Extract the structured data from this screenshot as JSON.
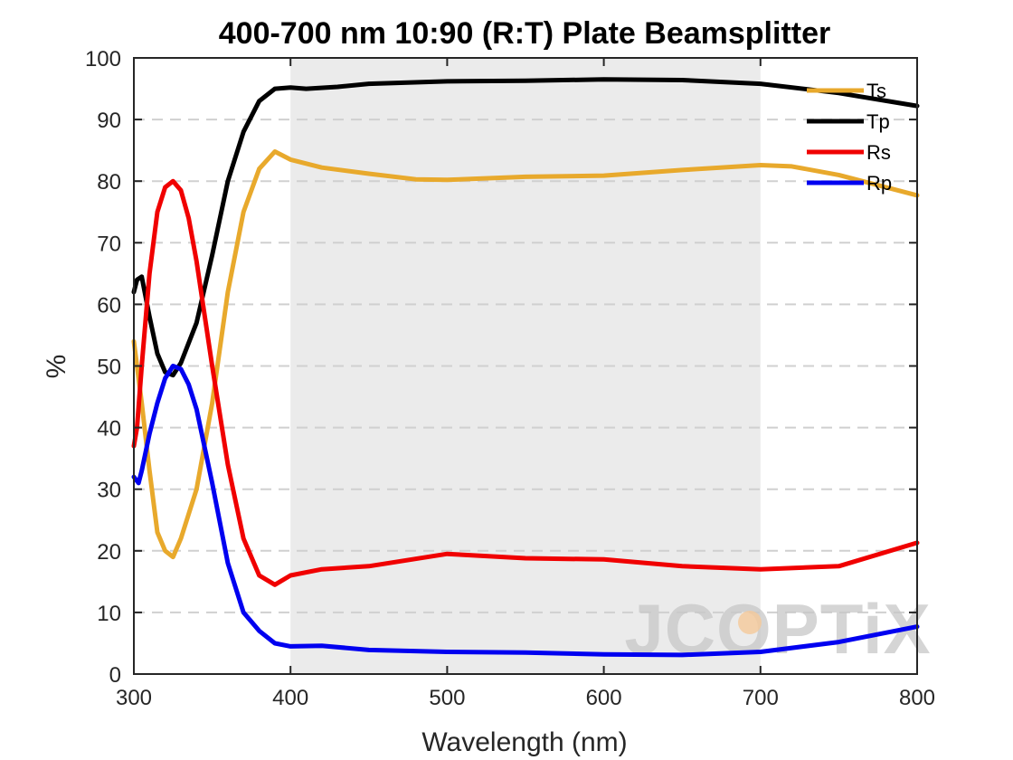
{
  "chart_data": {
    "type": "line",
    "title": "400-700 nm 10:90 (R:T) Plate Beamsplitter",
    "xlabel": "Wavelength (nm)",
    "ylabel": "%",
    "xlim": [
      300,
      800
    ],
    "ylim": [
      0,
      100
    ],
    "xticks": [
      300,
      400,
      500,
      600,
      700,
      800
    ],
    "yticks": [
      0,
      10,
      20,
      30,
      40,
      50,
      60,
      70,
      80,
      90,
      100
    ],
    "grid": "horizontal dashed",
    "shaded_band": [
      400,
      700
    ],
    "legend_position": "top-right",
    "series": [
      {
        "name": "Ts",
        "color": "#E8A92C",
        "x": [
          300,
          305,
          310,
          315,
          320,
          325,
          330,
          340,
          350,
          360,
          370,
          380,
          390,
          400,
          420,
          450,
          480,
          500,
          550,
          600,
          650,
          700,
          720,
          750,
          800
        ],
        "y": [
          54,
          44,
          33,
          23,
          20,
          19,
          22,
          30,
          44,
          62,
          75,
          82,
          84.8,
          83.5,
          82.2,
          81.2,
          80.3,
          80.2,
          80.7,
          80.9,
          81.8,
          82.6,
          82.4,
          81,
          77.7
        ]
      },
      {
        "name": "Tp",
        "color": "#000000",
        "x": [
          300,
          302,
          305,
          310,
          315,
          320,
          325,
          330,
          340,
          350,
          360,
          370,
          380,
          390,
          400,
          410,
          430,
          450,
          500,
          550,
          600,
          650,
          700,
          750,
          800
        ],
        "y": [
          62,
          64,
          64.5,
          58,
          52,
          49,
          48.5,
          50.5,
          57,
          68,
          80,
          88,
          93,
          95,
          95.2,
          95,
          95.3,
          95.8,
          96.2,
          96.3,
          96.5,
          96.4,
          95.8,
          94.3,
          92.2
        ]
      },
      {
        "name": "Rs",
        "color": "#F00000",
        "x": [
          300,
          302,
          305,
          310,
          315,
          320,
          325,
          330,
          335,
          340,
          350,
          360,
          370,
          380,
          390,
          400,
          420,
          450,
          500,
          550,
          600,
          650,
          700,
          750,
          800
        ],
        "y": [
          37,
          40,
          50,
          65,
          75,
          79,
          80,
          78.5,
          74,
          67,
          50,
          34,
          22,
          16,
          14.5,
          16,
          17,
          17.5,
          19.5,
          18.8,
          18.6,
          17.5,
          17,
          17.5,
          21.3
        ]
      },
      {
        "name": "Rp",
        "color": "#0000F0",
        "x": [
          300,
          303,
          305,
          310,
          315,
          320,
          325,
          330,
          335,
          340,
          350,
          360,
          370,
          380,
          390,
          400,
          420,
          450,
          500,
          550,
          600,
          650,
          700,
          750,
          800
        ],
        "y": [
          32,
          31,
          33,
          39,
          44,
          48,
          50,
          49.5,
          47,
          43,
          31,
          18,
          10,
          7,
          5,
          4.5,
          4.6,
          3.9,
          3.6,
          3.5,
          3.2,
          3.1,
          3.6,
          5.2,
          7.7
        ]
      }
    ]
  },
  "watermark": {
    "text": "JCOPTiX",
    "color": "#c7c7c7",
    "accent": "#f5c99a"
  }
}
